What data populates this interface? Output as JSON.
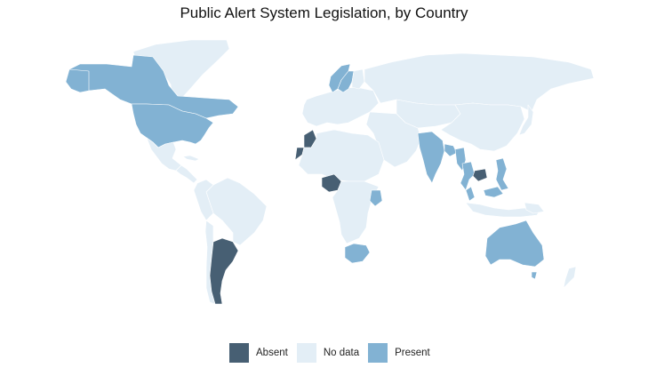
{
  "title": "Public Alert System Legislation, by Country",
  "colors": {
    "absent": "#475f73",
    "no_data": "#e3eef6",
    "present": "#82b2d3",
    "border": "#ffffff"
  },
  "legend": [
    {
      "label": "Absent",
      "status": "absent"
    },
    {
      "label": "No data",
      "status": "no_data"
    },
    {
      "label": "Present",
      "status": "present"
    }
  ],
  "countries": [
    {
      "name": "Canada",
      "status": "present"
    },
    {
      "name": "United States",
      "status": "present"
    },
    {
      "name": "Greenland",
      "status": "no_data"
    },
    {
      "name": "Mexico",
      "status": "no_data"
    },
    {
      "name": "Central America",
      "status": "no_data"
    },
    {
      "name": "Cuba",
      "status": "no_data"
    },
    {
      "name": "Brazil",
      "status": "no_data"
    },
    {
      "name": "Peru",
      "status": "no_data"
    },
    {
      "name": "Chile",
      "status": "no_data"
    },
    {
      "name": "Argentina",
      "status": "absent"
    },
    {
      "name": "Western Europe",
      "status": "no_data"
    },
    {
      "name": "Sweden",
      "status": "present"
    },
    {
      "name": "Norway",
      "status": "present"
    },
    {
      "name": "Finland",
      "status": "no_data"
    },
    {
      "name": "Russia",
      "status": "no_data"
    },
    {
      "name": "Morocco",
      "status": "absent"
    },
    {
      "name": "Western Sahara",
      "status": "absent"
    },
    {
      "name": "Nigeria",
      "status": "absent"
    },
    {
      "name": "Kenya",
      "status": "present"
    },
    {
      "name": "South Africa",
      "status": "present"
    },
    {
      "name": "North Africa",
      "status": "no_data"
    },
    {
      "name": "Central Africa",
      "status": "no_data"
    },
    {
      "name": "Middle East",
      "status": "no_data"
    },
    {
      "name": "Central Asia",
      "status": "no_data"
    },
    {
      "name": "China",
      "status": "no_data"
    },
    {
      "name": "India",
      "status": "present"
    },
    {
      "name": "Bangladesh",
      "status": "present"
    },
    {
      "name": "Myanmar",
      "status": "present"
    },
    {
      "name": "Thailand",
      "status": "present"
    },
    {
      "name": "Cambodia",
      "status": "absent"
    },
    {
      "name": "Philippines",
      "status": "present"
    },
    {
      "name": "Malaysia",
      "status": "present"
    },
    {
      "name": "Indonesia",
      "status": "no_data"
    },
    {
      "name": "Japan",
      "status": "no_data"
    },
    {
      "name": "Australia",
      "status": "present"
    },
    {
      "name": "New Zealand",
      "status": "no_data"
    },
    {
      "name": "Papua New Guinea",
      "status": "no_data"
    }
  ]
}
